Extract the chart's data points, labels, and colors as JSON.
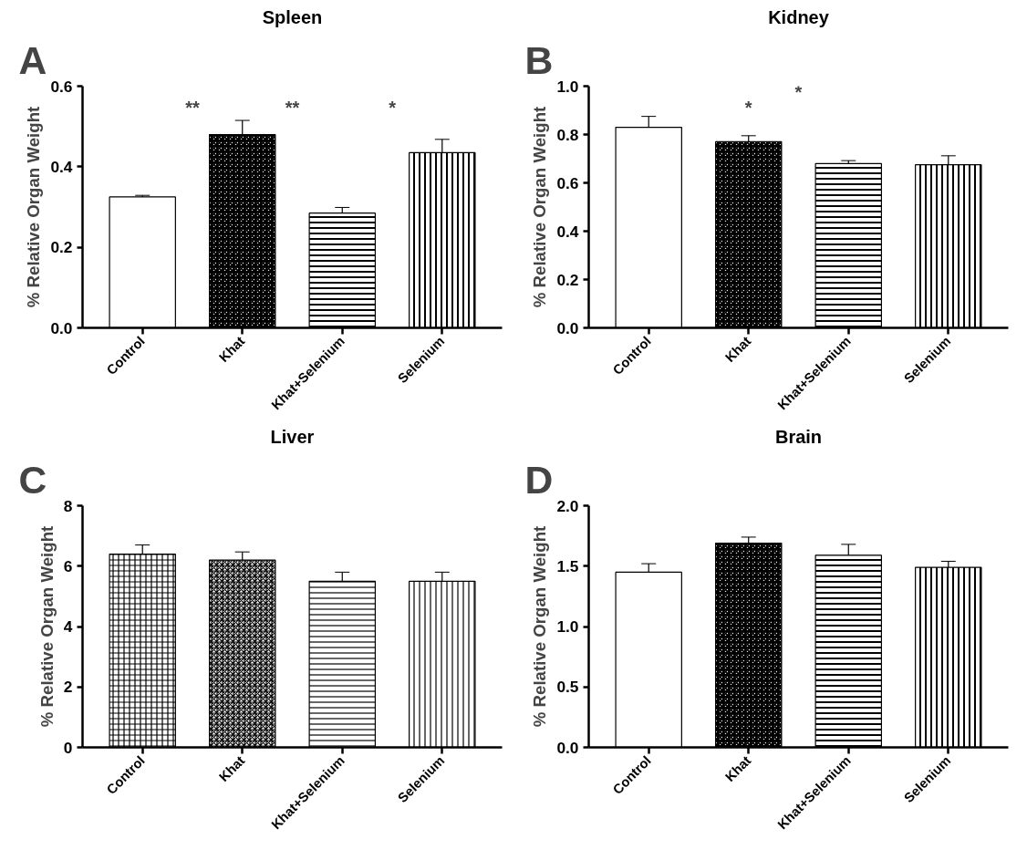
{
  "chart_data": [
    {
      "type": "bar",
      "title": "Spleen",
      "ylabel": "% Relative Organ Weight",
      "categories": [
        "Control",
        "Khat",
        "Khat+Selenium",
        "Selenium"
      ],
      "values": [
        0.325,
        0.48,
        0.285,
        0.435
      ],
      "errors": [
        0.004,
        0.035,
        0.014,
        0.033
      ],
      "colors": [
        "#ffffff",
        "#ffffff",
        "#ffffff",
        "#ffffff"
      ],
      "ylim": [
        0,
        0.6
      ],
      "yticks": [
        {
          "value": 0,
          "label": "0.0"
        },
        0.2,
        0.4,
        0.6
      ],
      "grid": false,
      "annotations": [
        "A",
        "**",
        "**",
        "*"
      ]
    },
    {
      "type": "bar",
      "title": "Kidney",
      "ylabel": "% Relative Organ Weight",
      "categories": [
        "Control",
        "Khat",
        "Khat+Selenium",
        "Selenium"
      ],
      "values": [
        0.83,
        0.77,
        0.68,
        0.675
      ],
      "errors": [
        0.045,
        0.025,
        0.012,
        0.037
      ],
      "colors": [
        "#ffffff",
        "#ffffff",
        "#ffffff",
        "#ffffff"
      ],
      "ylim": [
        0,
        1.0
      ],
      "yticks": [
        {
          "value": 0,
          "label": "0.0"
        },
        0.2,
        0.4,
        0.6,
        0.8,
        {
          "value": 1,
          "label": "1.0"
        }
      ],
      "grid": false,
      "annotations": [
        "B",
        "*",
        "*"
      ]
    },
    {
      "type": "bar",
      "title": "Liver",
      "ylabel": "% Relative Organ Weight",
      "categories": [
        "Control",
        "Khat",
        "Khat+Selenium",
        "Selenium"
      ],
      "values": [
        6.4,
        6.2,
        5.5,
        5.5
      ],
      "errors": [
        0.3,
        0.27,
        0.3,
        0.3
      ],
      "colors": [
        "#ffffff",
        "#ffffff",
        "#ffffff",
        "#ffffff"
      ],
      "ylim": [
        0,
        8
      ],
      "yticks": [
        0,
        2,
        4,
        6,
        8
      ],
      "grid": false,
      "annotations": [
        "C"
      ]
    },
    {
      "type": "bar",
      "title": "Brain",
      "ylabel": "% Relative Organ Weight",
      "categories": [
        "Control",
        "Khat",
        "Khat+Selenium",
        "Selenium"
      ],
      "values": [
        1.45,
        1.69,
        1.59,
        1.49
      ],
      "errors": [
        0.07,
        0.05,
        0.09,
        0.05
      ],
      "colors": [
        "#ffffff",
        "#ffffff",
        "#ffffff",
        "#ffffff"
      ],
      "ylim": [
        0,
        2.0
      ],
      "yticks": [
        {
          "value": 0,
          "label": "0.0"
        },
        0.5,
        {
          "value": 1,
          "label": "1.0"
        },
        1.5,
        {
          "value": 2,
          "label": "2.0"
        }
      ],
      "grid": false,
      "annotations": [
        "D"
      ]
    }
  ]
}
